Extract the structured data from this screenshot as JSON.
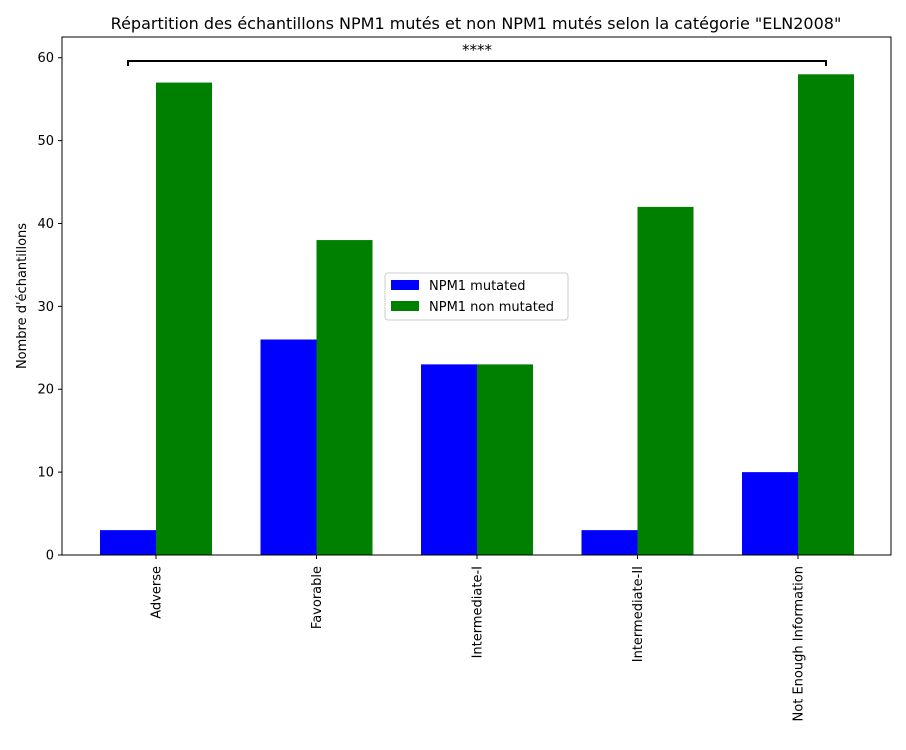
{
  "chart_data": {
    "type": "bar",
    "title": "Répartition des échantillons NPM1 mutés et non NPM1 mutés selon la catégorie \"ELN2008\"",
    "xlabel": "",
    "ylabel": "Nombre d'échantillons",
    "categories": [
      "Adverse",
      "Favorable",
      "Intermediate-I",
      "Intermediate-II",
      "Not Enough Information"
    ],
    "series": [
      {
        "name": "NPM1 mutated",
        "color": "#0000ff",
        "values": [
          3,
          26,
          23,
          3,
          10
        ]
      },
      {
        "name": "NPM1 non mutated",
        "color": "#008000",
        "values": [
          57,
          38,
          23,
          42,
          58
        ]
      }
    ],
    "ylim": [
      0,
      62.5
    ],
    "yticks": [
      0,
      10,
      20,
      30,
      40,
      50,
      60
    ],
    "x_tick_rotation": "vertical",
    "grid": false,
    "legend_position": "center",
    "annotations": [
      {
        "text": "****",
        "from_category": "Adverse",
        "to_category": "Not Enough Information",
        "type": "significance-bracket"
      }
    ]
  }
}
